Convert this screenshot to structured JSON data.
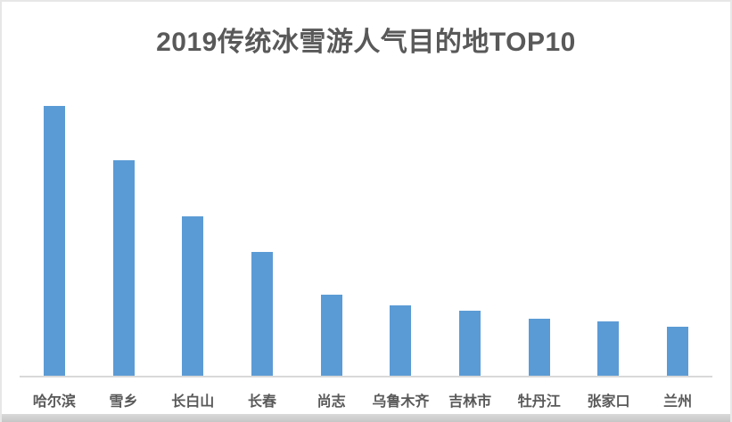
{
  "chart_data": {
    "type": "bar",
    "title": "2019传统冰雪游人气目的地TOP10",
    "categories": [
      "哈尔滨",
      "雪乡",
      "长白山",
      "长春",
      "尚志",
      "乌鲁木齐",
      "吉林市",
      "牡丹江",
      "张家口",
      "兰州"
    ],
    "values": [
      100,
      80,
      59,
      46,
      30,
      26,
      24,
      21,
      20,
      18
    ],
    "xlabel": "",
    "ylabel": "",
    "ylim": [
      0,
      100
    ],
    "grid": false,
    "legend": "none",
    "value_axis_visible": false,
    "bar_color": "#5b9bd5",
    "axis_line_color": "#d9d9d9",
    "title_color": "#595959",
    "label_color": "#595959",
    "background_color": "#ffffff"
  }
}
